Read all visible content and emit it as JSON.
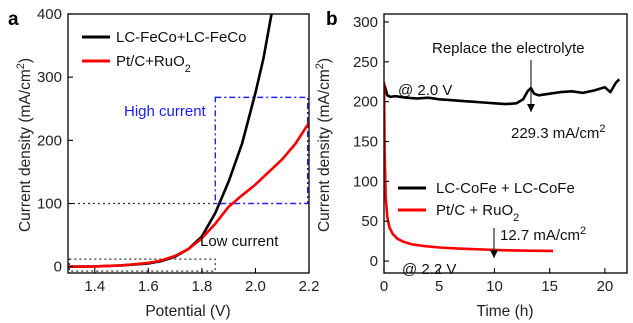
{
  "chart_data": [
    {
      "type": "line",
      "panel": "a",
      "xlabel": "Potential (V)",
      "ylabel": "Current density (mA/cm²)",
      "xlim": [
        1.3,
        2.2
      ],
      "ylim": [
        -10,
        400
      ],
      "xticks": [
        "1.4",
        "1.6",
        "1.8",
        "2.0",
        "2.2"
      ],
      "yticks": [
        "0",
        "100",
        "200",
        "300",
        "400"
      ],
      "legend_position": "top-left",
      "series": [
        {
          "name": "LC-FeCo+LC-FeCo",
          "color": "#000000",
          "x": [
            1.3,
            1.4,
            1.5,
            1.6,
            1.65,
            1.7,
            1.75,
            1.8,
            1.85,
            1.9,
            1.95,
            2.0,
            2.03,
            2.06
          ],
          "y": [
            0,
            0.5,
            2,
            5,
            9,
            16,
            28,
            48,
            85,
            135,
            195,
            275,
            330,
            400
          ]
        },
        {
          "name": "Pt/C+RuO₂",
          "color": "#ff0000",
          "x": [
            1.3,
            1.4,
            1.5,
            1.6,
            1.65,
            1.7,
            1.75,
            1.8,
            1.85,
            1.9,
            1.95,
            2.0,
            2.05,
            2.1,
            2.15,
            2.2
          ],
          "y": [
            0,
            0.5,
            2,
            6,
            10,
            17,
            28,
            45,
            68,
            95,
            113,
            130,
            150,
            170,
            195,
            228
          ]
        }
      ],
      "annotations": {
        "high": "High current",
        "low": "Low current"
      }
    },
    {
      "type": "line",
      "panel": "b",
      "xlabel": "Time (h)",
      "ylabel": "Current density (mA/cm²)",
      "xlim": [
        0,
        22
      ],
      "ylim": [
        -15,
        310
      ],
      "xticks": [
        "0",
        "5",
        "10",
        "15",
        "20"
      ],
      "yticks": [
        "0",
        "50",
        "100",
        "150",
        "200",
        "250",
        "300"
      ],
      "legend_position": "center-right",
      "series": [
        {
          "name": "LC-CoFe + LC-CoFe",
          "color": "#000000",
          "x": [
            0,
            0.1,
            0.3,
            0.6,
            1,
            2,
            3,
            4,
            5,
            6,
            7,
            8,
            9,
            10,
            11,
            12,
            12.6,
            13.0,
            13.3,
            13.6,
            14,
            15,
            16,
            17,
            18,
            19,
            20,
            20.5,
            21,
            21.3
          ],
          "y": [
            222,
            218,
            208,
            206,
            207,
            205,
            204,
            205,
            203,
            202,
            201,
            200,
            199,
            198,
            197,
            198,
            203,
            213,
            217,
            210,
            208,
            210,
            212,
            213,
            211,
            214,
            218,
            212,
            224,
            228
          ]
        },
        {
          "name": "Pt/C + RuO₂",
          "color": "#ff0000",
          "x": [
            0,
            0.05,
            0.15,
            0.3,
            0.5,
            0.8,
            1.2,
            1.8,
            2.5,
            3.5,
            5,
            7,
            9,
            11,
            13,
            15.3
          ],
          "y": [
            225,
            140,
            80,
            55,
            42,
            34,
            28,
            24,
            21,
            19,
            17,
            15.5,
            14.5,
            13.5,
            13,
            12.7
          ]
        }
      ],
      "annotations": {
        "replace": "Replace the electrolyte",
        "v20": "@ 2.0 V",
        "v22": "@ 2.2 V",
        "cd_black": "229.3 mA/cm",
        "cd_red": "12.7 mA/cm",
        "sup": "2"
      }
    }
  ]
}
